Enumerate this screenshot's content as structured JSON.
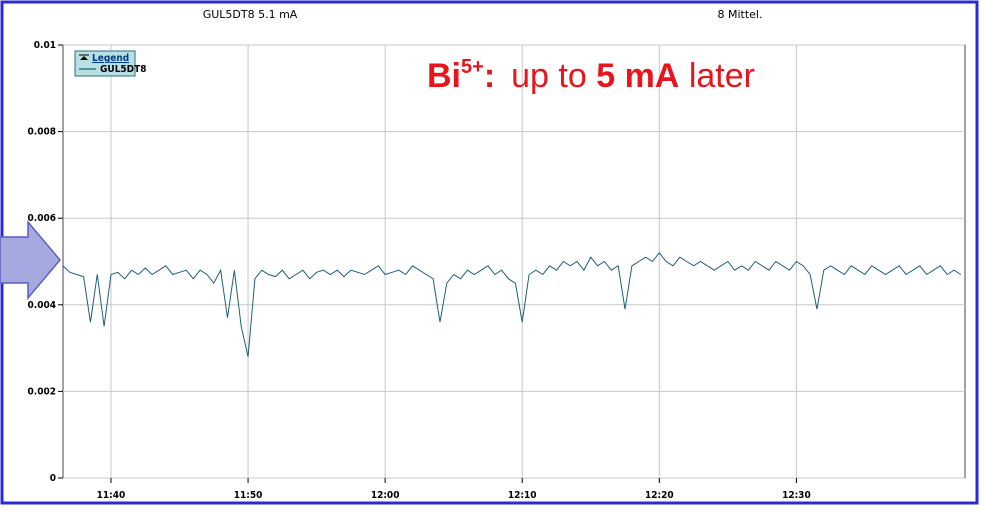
{
  "header": {
    "left": "GUL5DT8  5.1 mA",
    "right": "8 Mittel."
  },
  "chart_data": {
    "type": "line",
    "legend_title": "Legend",
    "annotation": [
      "Bi",
      "5+",
      ":",
      "up to",
      "5 mA",
      "later"
    ],
    "x": [
      696.5,
      697,
      697.5,
      698,
      698.5,
      699,
      699.5,
      700,
      700.5,
      701,
      701.5,
      702,
      702.5,
      703,
      703.5,
      704,
      704.5,
      705,
      705.5,
      706,
      706.5,
      707,
      707.5,
      708,
      708.5,
      709,
      709.5,
      710,
      710.5,
      711,
      711.5,
      712,
      712.5,
      713,
      713.5,
      714,
      714.5,
      715,
      715.5,
      716,
      716.5,
      717,
      717.5,
      718,
      718.5,
      719,
      719.5,
      720,
      720.5,
      721,
      721.5,
      722,
      722.5,
      723,
      723.5,
      724,
      724.5,
      725,
      725.5,
      726,
      726.5,
      727,
      727.5,
      728,
      728.5,
      729,
      729.5,
      730,
      730.5,
      731,
      731.5,
      732,
      732.5,
      733,
      733.5,
      734,
      734.5,
      735,
      735.5,
      736,
      736.5,
      737,
      737.5,
      738,
      738.5,
      739,
      739.5,
      740,
      740.5,
      741,
      741.5,
      742,
      742.5,
      743,
      743.5,
      744,
      744.5,
      745,
      745.5,
      746,
      746.5,
      747,
      747.5,
      748,
      748.5,
      749,
      749.5,
      750,
      750.5,
      751,
      751.5,
      752,
      752.5,
      753,
      753.5,
      754,
      754.5,
      755,
      755.5,
      756,
      756.5,
      757,
      757.5,
      758,
      758.5,
      759,
      759.5,
      760,
      760.5,
      761,
      761.5,
      762
    ],
    "series": [
      {
        "name": "GUL5DT8",
        "color": "#1f5f78",
        "values": [
          0.0049,
          0.00475,
          0.0047,
          0.00465,
          0.0036,
          0.0047,
          0.0035,
          0.0047,
          0.00475,
          0.0046,
          0.0048,
          0.0047,
          0.00485,
          0.0047,
          0.0048,
          0.0049,
          0.0047,
          0.00475,
          0.0048,
          0.0046,
          0.0048,
          0.0047,
          0.0045,
          0.0048,
          0.0037,
          0.0048,
          0.0035,
          0.0028,
          0.0046,
          0.0048,
          0.0047,
          0.00465,
          0.0048,
          0.0046,
          0.0047,
          0.0048,
          0.0046,
          0.00475,
          0.0048,
          0.0047,
          0.0048,
          0.00465,
          0.0048,
          0.00475,
          0.0047,
          0.0048,
          0.0049,
          0.0047,
          0.00475,
          0.0048,
          0.0047,
          0.0049,
          0.0048,
          0.0047,
          0.0046,
          0.0036,
          0.0045,
          0.0047,
          0.0046,
          0.0048,
          0.0047,
          0.0048,
          0.0049,
          0.0047,
          0.0048,
          0.0046,
          0.0045,
          0.0036,
          0.0047,
          0.0048,
          0.0047,
          0.0049,
          0.0048,
          0.005,
          0.0049,
          0.005,
          0.0048,
          0.0051,
          0.0049,
          0.005,
          0.0048,
          0.0049,
          0.0039,
          0.0049,
          0.005,
          0.0051,
          0.005,
          0.0052,
          0.005,
          0.0049,
          0.0051,
          0.005,
          0.0049,
          0.005,
          0.0049,
          0.0048,
          0.0049,
          0.005,
          0.0048,
          0.0049,
          0.0048,
          0.005,
          0.0049,
          0.0048,
          0.005,
          0.0049,
          0.0048,
          0.005,
          0.0049,
          0.0047,
          0.0039,
          0.0048,
          0.0049,
          0.0048,
          0.0047,
          0.0049,
          0.0048,
          0.0047,
          0.0049,
          0.0048,
          0.0047,
          0.0048,
          0.0049,
          0.0047,
          0.0048,
          0.0049,
          0.0047,
          0.0048,
          0.0049,
          0.0047,
          0.0048,
          0.0047
        ]
      }
    ],
    "xlim": [
      696.5,
      762.3
    ],
    "xticks": [
      {
        "value": 700,
        "label": "11:40"
      },
      {
        "value": 710,
        "label": "11:50"
      },
      {
        "value": 720,
        "label": "12:00"
      },
      {
        "value": 730,
        "label": "12:10"
      },
      {
        "value": 740,
        "label": "12:20"
      },
      {
        "value": 750,
        "label": "12:30"
      }
    ],
    "ylim": [
      0,
      0.01
    ],
    "yticks": [
      0,
      0.002,
      0.004,
      0.006,
      0.008,
      0.01
    ],
    "grid": true
  }
}
